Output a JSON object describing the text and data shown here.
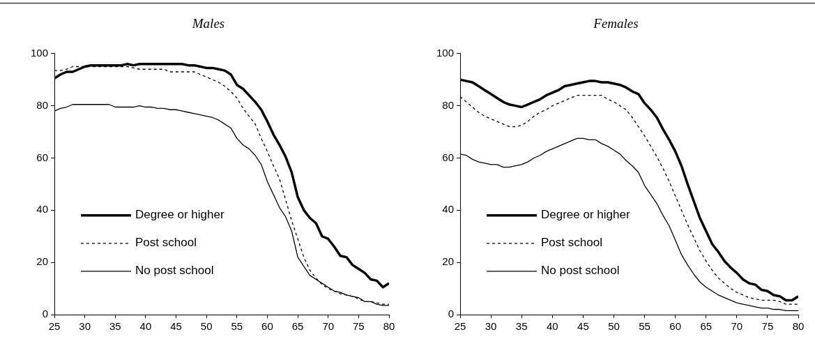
{
  "chart_data": [
    {
      "type": "line",
      "title": "Males",
      "x": [
        25,
        26,
        27,
        28,
        29,
        30,
        31,
        32,
        33,
        34,
        35,
        36,
        37,
        38,
        39,
        40,
        41,
        42,
        43,
        44,
        45,
        46,
        47,
        48,
        49,
        50,
        51,
        52,
        53,
        54,
        55,
        56,
        57,
        58,
        59,
        60,
        61,
        62,
        63,
        64,
        65,
        66,
        67,
        68,
        69,
        70,
        71,
        72,
        73,
        74,
        75,
        76,
        77,
        78,
        79,
        80
      ],
      "series": [
        {
          "name": "Degree or higher",
          "color": "#000000",
          "line_style": "solid",
          "values": [
            90.5,
            92,
            93,
            93,
            94,
            95,
            95.5,
            95.5,
            95.5,
            95.5,
            95.5,
            95.5,
            96,
            95.5,
            96,
            96,
            96,
            96,
            96,
            96,
            96,
            96,
            95.5,
            95.5,
            95,
            94.5,
            94.5,
            94,
            93.5,
            92,
            88,
            86.5,
            84,
            81.5,
            78.5,
            74,
            69,
            65,
            60.5,
            54.5,
            45,
            40,
            37,
            35,
            30,
            29,
            26,
            22.5,
            22,
            19,
            17.5,
            16,
            13.5,
            13,
            10.5,
            12
          ]
        },
        {
          "name": "Post school",
          "color": "#000000",
          "line_style": "dashed",
          "values": [
            93.5,
            93.5,
            94,
            95,
            95,
            95,
            95,
            95,
            95,
            95,
            95,
            95,
            95,
            94.5,
            94,
            94,
            94,
            94,
            94,
            93,
            93,
            93,
            93,
            93,
            92,
            91,
            90,
            89,
            87.5,
            85.5,
            83,
            79,
            76,
            73,
            67.5,
            62.5,
            57,
            52,
            44,
            36,
            29,
            22,
            17,
            14,
            11.5,
            10,
            9,
            8,
            7.5,
            7,
            6,
            5,
            5,
            4.5,
            4,
            4
          ]
        },
        {
          "name": "No post school",
          "color": "#000000",
          "line_style": "solid",
          "values": [
            78,
            79,
            79.5,
            80.5,
            80.5,
            80.5,
            80.5,
            80.5,
            80.5,
            80.5,
            79.5,
            79.5,
            79.5,
            79.5,
            80,
            79.5,
            79.5,
            79,
            79,
            78.5,
            78.5,
            78,
            77.5,
            77,
            76.5,
            76,
            75.5,
            74.5,
            73,
            71.5,
            67.5,
            65,
            63.5,
            61,
            57.5,
            51,
            46,
            41,
            37.5,
            32,
            22,
            18.5,
            15,
            13.5,
            12,
            10.5,
            9,
            8.5,
            7.5,
            7,
            6.5,
            5,
            5,
            4,
            3.5,
            3.5
          ]
        }
      ],
      "xlim": [
        25,
        80
      ],
      "xticks": [
        25,
        30,
        35,
        40,
        45,
        50,
        55,
        60,
        65,
        70,
        75,
        80
      ],
      "ylim": [
        0,
        100
      ],
      "yticks": [
        0,
        20,
        40,
        60,
        80,
        100
      ],
      "grid": false,
      "legend": "bottom left",
      "marker": "none"
    },
    {
      "type": "line",
      "title": "Females",
      "x": [
        25,
        26,
        27,
        28,
        29,
        30,
        31,
        32,
        33,
        34,
        35,
        36,
        37,
        38,
        39,
        40,
        41,
        42,
        43,
        44,
        45,
        46,
        47,
        48,
        49,
        50,
        51,
        52,
        53,
        54,
        55,
        56,
        57,
        58,
        59,
        60,
        61,
        62,
        63,
        64,
        65,
        66,
        67,
        68,
        69,
        70,
        71,
        72,
        73,
        74,
        75,
        76,
        77,
        78,
        79,
        80
      ],
      "series": [
        {
          "name": "Degree or higher",
          "color": "#000000",
          "line_style": "solid",
          "values": [
            90,
            89.5,
            89,
            87.5,
            86,
            84.5,
            83,
            81.5,
            80.5,
            80,
            79.5,
            80.5,
            81.5,
            82.5,
            84,
            85,
            86,
            87.5,
            88,
            88.5,
            89,
            89.5,
            89.5,
            89,
            89,
            88.5,
            88,
            87,
            85.5,
            84.5,
            81,
            78.5,
            75.5,
            71,
            67,
            62.5,
            57,
            50,
            43.5,
            37,
            32,
            27,
            24,
            20.5,
            18,
            16,
            13.5,
            12,
            11.5,
            9.5,
            9,
            7.5,
            7,
            5.5,
            5.5,
            7
          ]
        },
        {
          "name": "Post school",
          "color": "#000000",
          "line_style": "dashed",
          "values": [
            83.5,
            81.5,
            79.5,
            77.5,
            76,
            75,
            74,
            73,
            72,
            72,
            72.5,
            74,
            76,
            77.5,
            78.5,
            80,
            81,
            82,
            83,
            84,
            84,
            84,
            84,
            84,
            82.5,
            81.5,
            80,
            78.5,
            75.5,
            72,
            68.5,
            64.5,
            60.5,
            56,
            51,
            45.5,
            40,
            34.5,
            29.5,
            24.5,
            20.5,
            17,
            14,
            12,
            10,
            8.5,
            7.5,
            6.5,
            6,
            5.5,
            5.5,
            5.5,
            5,
            4,
            4,
            4
          ]
        },
        {
          "name": "No post school",
          "color": "#000000",
          "line_style": "solid",
          "values": [
            61.5,
            61,
            59.5,
            58.5,
            58,
            57.5,
            57.5,
            56.5,
            56.5,
            57,
            57.5,
            58.5,
            60,
            61,
            62.5,
            63.5,
            64.5,
            65.5,
            66.5,
            67.5,
            67.5,
            67,
            67,
            65.5,
            64.5,
            63,
            61.5,
            59,
            57,
            54.5,
            49.5,
            46,
            42.5,
            38,
            34,
            28.5,
            23,
            19,
            15.5,
            12.5,
            10.5,
            9,
            7.5,
            6.5,
            5.5,
            4.5,
            4,
            3.5,
            3,
            2.5,
            2.5,
            2,
            2,
            1.5,
            1.5,
            1.5
          ]
        }
      ],
      "xlim": [
        25,
        80
      ],
      "xticks": [
        25,
        30,
        35,
        40,
        45,
        50,
        55,
        60,
        65,
        70,
        75,
        80
      ],
      "ylim": [
        0,
        100
      ],
      "yticks": [
        0,
        20,
        40,
        60,
        80,
        100
      ],
      "grid": false,
      "legend": "bottom left",
      "marker": "none"
    }
  ]
}
